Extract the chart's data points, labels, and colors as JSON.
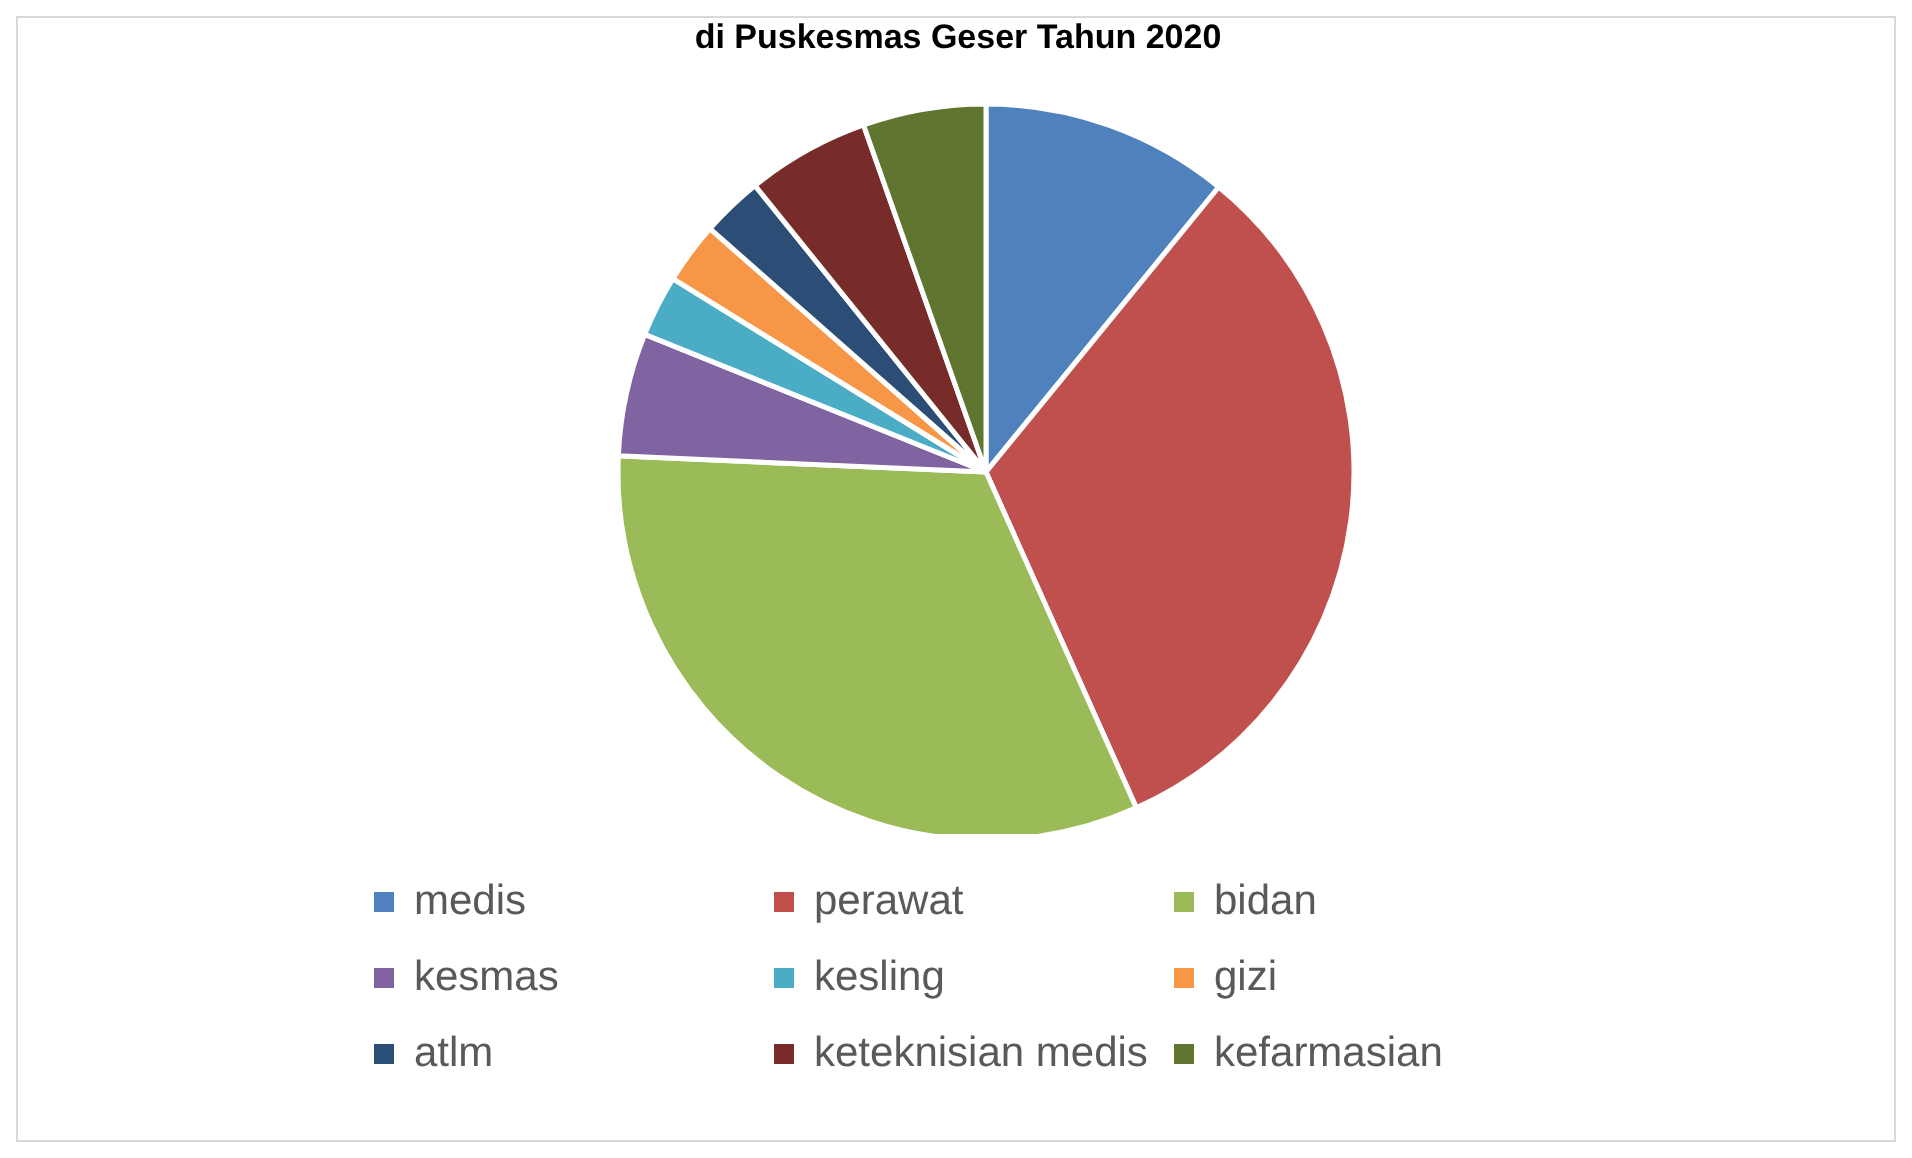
{
  "chart_data": {
    "type": "pie",
    "title": "di Puskesmas Geser Tahun 2020",
    "categories": [
      "medis",
      "perawat",
      "bidan",
      "kesmas",
      "kesling",
      "gizi",
      "atlm",
      "keteknisian medis",
      "kefarmasian"
    ],
    "values": [
      10.9,
      32.4,
      32.4,
      5.4,
      2.7,
      2.7,
      2.7,
      5.4,
      5.4
    ],
    "colors": [
      "#4f81bd",
      "#c0504d",
      "#9bbb59",
      "#8064a2",
      "#4bacc6",
      "#f79646",
      "#2c4d75",
      "#772c2a",
      "#5f7530"
    ],
    "legend": "bottom"
  }
}
